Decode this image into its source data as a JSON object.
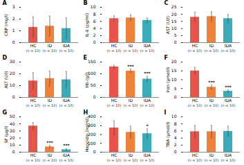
{
  "chart_data": [
    {
      "type": "bar",
      "title": "A",
      "ylabel": "CRP (mg/l)",
      "categories": [
        "HC",
        "ID",
        "IDA"
      ],
      "values": [
        1.3,
        1.4,
        1.2
      ],
      "errors": [
        0.9,
        0.85,
        0.9
      ],
      "significance": [
        null,
        null,
        null
      ],
      "category_notes": [
        "(n = 10)",
        "(n = 10)",
        "(n = 10)"
      ],
      "colors": [
        "#e8534a",
        "#f0813a",
        "#3aacb8"
      ],
      "ylim": [
        0,
        3
      ],
      "yticks": [
        0,
        1,
        2,
        3
      ],
      "grid": false
    },
    {
      "type": "bar",
      "title": "B",
      "ylabel": "IL-6 (pg/ml)",
      "categories": [
        "HC",
        "ID",
        "IDA"
      ],
      "values": [
        6.8,
        7.0,
        6.3
      ],
      "errors": [
        0.8,
        0.9,
        0.7
      ],
      "significance": [
        null,
        null,
        null
      ],
      "category_notes": [
        "(n = 10)",
        "(n = 10)",
        "(n = 10)"
      ],
      "colors": [
        "#e8534a",
        "#f0813a",
        "#3aacb8"
      ],
      "ylim": [
        0,
        10
      ],
      "yticks": [
        0,
        2,
        4,
        6,
        8,
        10
      ],
      "grid": false
    },
    {
      "type": "bar",
      "title": "C",
      "ylabel": "AST (U/l)",
      "categories": [
        "HC",
        "ID",
        "IDA"
      ],
      "values": [
        18.0,
        18.5,
        17.0
      ],
      "errors": [
        3.5,
        3.5,
        3.0
      ],
      "significance": [
        null,
        null,
        null
      ],
      "category_notes": [
        "(n = 10)",
        "(n = 10)",
        "(n = 10)"
      ],
      "colors": [
        "#e8534a",
        "#f0813a",
        "#3aacb8"
      ],
      "ylim": [
        0,
        25
      ],
      "yticks": [
        0,
        5,
        10,
        15,
        20,
        25
      ],
      "grid": false
    },
    {
      "type": "bar",
      "title": "D",
      "ylabel": "ALT (U/l)",
      "categories": [
        "HC",
        "ID",
        "IDA"
      ],
      "values": [
        14.0,
        16.0,
        15.0
      ],
      "errors": [
        7.0,
        6.5,
        7.0
      ],
      "significance": [
        null,
        null,
        null
      ],
      "category_notes": [
        "(n = 10)",
        "(n = 10)",
        "(n = 10)"
      ],
      "colors": [
        "#e8534a",
        "#f0813a",
        "#3aacb8"
      ],
      "ylim": [
        0,
        30
      ],
      "yticks": [
        0,
        10,
        20,
        30
      ],
      "grid": false
    },
    {
      "type": "bar",
      "title": "E",
      "ylabel": "Hb (g/l)",
      "categories": [
        "HC",
        "ID",
        "IDA"
      ],
      "values": [
        130.0,
        112.0,
        78.0
      ],
      "errors": [
        7.0,
        8.0,
        12.0
      ],
      "significance": [
        null,
        "***",
        "***"
      ],
      "category_notes": [
        "(n = 10)",
        "(n = 10)",
        "(n = 10)"
      ],
      "colors": [
        "#e8534a",
        "#f0813a",
        "#3aacb8"
      ],
      "ylim": [
        0,
        150
      ],
      "yticks": [
        0,
        50,
        100,
        150
      ],
      "grid": false
    },
    {
      "type": "bar",
      "title": "F",
      "ylabel": "Iron (μmol/l)",
      "categories": [
        "HC",
        "ID",
        "IDA"
      ],
      "values": [
        15.0,
        5.8,
        3.5
      ],
      "errors": [
        2.0,
        1.2,
        0.8
      ],
      "significance": [
        null,
        "***",
        "***"
      ],
      "category_notes": [
        "(n = 10)",
        "(n = 10)",
        "(n = 10)"
      ],
      "colors": [
        "#e8534a",
        "#f0813a",
        "#3aacb8"
      ],
      "ylim": [
        0,
        20
      ],
      "yticks": [
        0,
        5,
        10,
        15,
        20
      ],
      "grid": false
    },
    {
      "type": "bar",
      "title": "G",
      "ylabel": "SF (μg/l)",
      "categories": [
        "HC",
        "ID",
        "IDA"
      ],
      "values": [
        37.0,
        7.5,
        3.5
      ],
      "errors": [
        5.0,
        2.0,
        1.5
      ],
      "significance": [
        null,
        "***",
        "***"
      ],
      "category_notes": [
        "(n = 10)",
        "(n = 10)",
        "(n = 10)"
      ],
      "colors": [
        "#e8534a",
        "#f0813a",
        "#3aacb8"
      ],
      "ylim": [
        0,
        50
      ],
      "yticks": [
        0,
        10,
        20,
        30,
        40,
        50
      ],
      "grid": false
    },
    {
      "type": "bar",
      "title": "H",
      "ylabel": "Hepcidin (ng/ml)",
      "categories": [
        "HC",
        "ID",
        "IDA"
      ],
      "values": [
        275.0,
        225.0,
        210.0
      ],
      "errors": [
        80.0,
        70.0,
        55.0
      ],
      "significance": [
        null,
        null,
        "*"
      ],
      "category_notes": [
        "(n = 10)",
        "(n = 10)",
        "(n = 10)"
      ],
      "colors": [
        "#e8534a",
        "#f0813a",
        "#3aacb8"
      ],
      "ylim": [
        0,
        400
      ],
      "yticks": [
        0,
        100,
        200,
        300,
        400
      ],
      "grid": false
    },
    {
      "type": "bar",
      "title": "I",
      "ylabel": "TBA (μmol/l)",
      "categories": [
        "HC",
        "ID",
        "IDA"
      ],
      "values": [
        5.8,
        5.8,
        5.9
      ],
      "errors": [
        1.8,
        1.8,
        1.5
      ],
      "significance": [
        null,
        null,
        null
      ],
      "category_notes": [
        "(n = 10)",
        "(n = 10)",
        "(n = 10)"
      ],
      "colors": [
        "#e8534a",
        "#f0813a",
        "#3aacb8"
      ],
      "ylim": [
        0,
        10
      ],
      "yticks": [
        0,
        2,
        4,
        6,
        8,
        10
      ],
      "grid": false
    }
  ]
}
